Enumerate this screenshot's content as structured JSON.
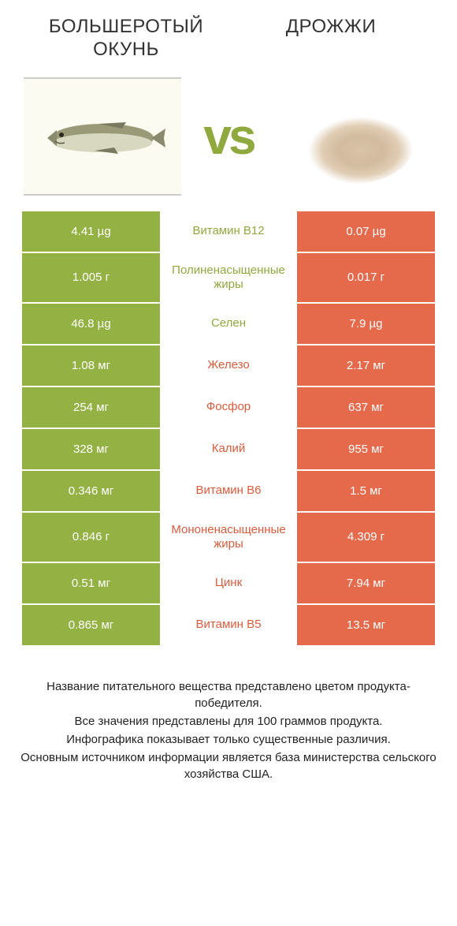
{
  "colors": {
    "green": "#94b143",
    "orange": "#e46a4b",
    "mid_green_text": "#8fa93f",
    "mid_orange_text": "#d85c3e",
    "title_text": "#333333",
    "footer_text": "#222222",
    "vs": "#8fa93f"
  },
  "title_left": "БОЛЬШЕРОТЫЙ ОКУНЬ",
  "title_right": "ДРОЖЖИ",
  "vs_label": "vs",
  "rows": [
    {
      "left": "4.41 µg",
      "mid": "Витамин B12",
      "right": "0.07 µg",
      "winner": "left",
      "tall": false
    },
    {
      "left": "1.005 г",
      "mid": "Полиненасыщенные жиры",
      "right": "0.017 г",
      "winner": "left",
      "tall": true
    },
    {
      "left": "46.8 µg",
      "mid": "Селен",
      "right": "7.9 µg",
      "winner": "left",
      "tall": false
    },
    {
      "left": "1.08 мг",
      "mid": "Железо",
      "right": "2.17 мг",
      "winner": "right",
      "tall": false
    },
    {
      "left": "254 мг",
      "mid": "Фосфор",
      "right": "637 мг",
      "winner": "right",
      "tall": false
    },
    {
      "left": "328 мг",
      "mid": "Калий",
      "right": "955 мг",
      "winner": "right",
      "tall": false
    },
    {
      "left": "0.346 мг",
      "mid": "Витамин B6",
      "right": "1.5 мг",
      "winner": "right",
      "tall": false
    },
    {
      "left": "0.846 г",
      "mid": "Мононенасыщенные жиры",
      "right": "4.309 г",
      "winner": "right",
      "tall": true
    },
    {
      "left": "0.51 мг",
      "mid": "Цинк",
      "right": "7.94 мг",
      "winner": "right",
      "tall": false
    },
    {
      "left": "0.865 мг",
      "mid": "Витамин B5",
      "right": "13.5 мг",
      "winner": "right",
      "tall": false
    }
  ],
  "footer": [
    "Название питательного вещества представлено цветом продукта-победителя.",
    "Все значения представлены для 100 граммов продукта.",
    "Инфографика показывает только существенные различия.",
    "Основным источником информации является база министерства сельского хозяйства США."
  ]
}
